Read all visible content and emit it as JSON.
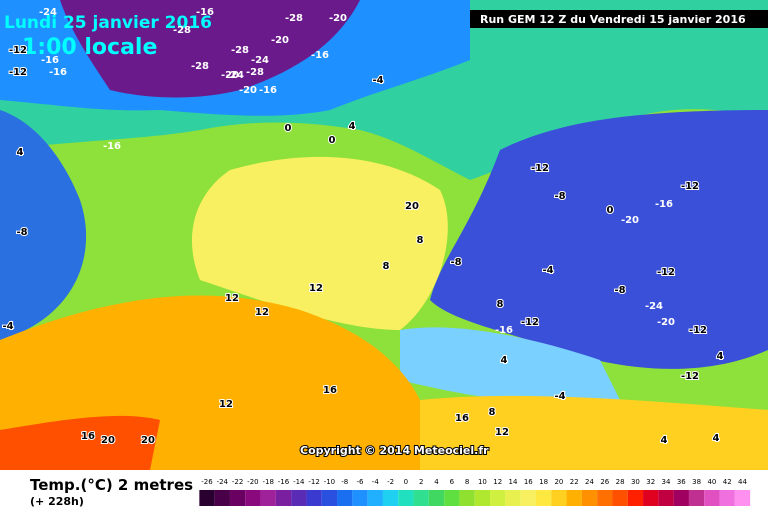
{
  "header": {
    "date": "Lundi 25 janvier 2016",
    "time": "1:00 locale",
    "run": "Run GEM 12 Z du Vendredi 15 janvier 2016",
    "copyright": "Copyright © 2014 Meteociel.fr"
  },
  "legend": {
    "title": "Temp.(°C) 2 metres",
    "lead": "(+ 228h)",
    "scale": [
      -26,
      -24,
      -22,
      -20,
      -18,
      -16,
      -14,
      -12,
      -10,
      -8,
      -6,
      -4,
      -2,
      0,
      2,
      4,
      6,
      8,
      10,
      12,
      14,
      16,
      18,
      20,
      22,
      24,
      26,
      28,
      30,
      32,
      34,
      36,
      38,
      40,
      42,
      44
    ],
    "colors": [
      "#2a0030",
      "#4a0048",
      "#6b0063",
      "#8a0a7e",
      "#a0229a",
      "#7a1fa0",
      "#5a2bb5",
      "#3a3ad0",
      "#2a50e0",
      "#1a6ef0",
      "#1e90ff",
      "#20b0ff",
      "#20d0f0",
      "#20e0c0",
      "#30e090",
      "#40d860",
      "#60e040",
      "#90e030",
      "#b0e830",
      "#d0f040",
      "#e8f050",
      "#f8f060",
      "#ffe840",
      "#ffd020",
      "#ffb000",
      "#ff9000",
      "#ff7000",
      "#ff5000",
      "#ff2000",
      "#e00020",
      "#c00040",
      "#a00060",
      "#c03090",
      "#e050c0",
      "#f070e0",
      "#ff90f0"
    ]
  },
  "map_labels": [
    -24,
    -16,
    -28,
    -20,
    -28,
    -20,
    -24,
    -28,
    -20,
    -16,
    -12,
    -16,
    -12,
    -16,
    -28,
    -24,
    -28,
    -20,
    -16,
    -4,
    -16,
    0,
    4,
    0,
    4,
    -8,
    -4,
    12,
    12,
    12,
    12,
    16,
    16,
    20,
    20,
    20,
    8,
    8,
    8,
    -12,
    -8,
    -20,
    -12,
    -8,
    0,
    -4,
    -8,
    -12,
    -16,
    -12,
    -16,
    -24,
    -12,
    -20,
    -12,
    4,
    4,
    8,
    12,
    16,
    4,
    -4,
    4
  ]
}
